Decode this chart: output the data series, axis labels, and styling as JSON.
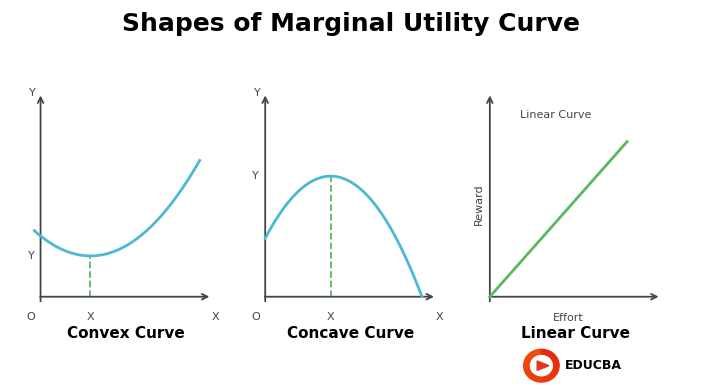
{
  "title": "Shapes of Marginal Utility Curve",
  "title_fontsize": 18,
  "title_fontweight": "bold",
  "bg_color": "#ffffff",
  "curve_color": "#4db8d4",
  "dashed_color": "#5cb85c",
  "linear_color": "#5cb85c",
  "axis_color": "#444444",
  "subtitle_fontsize": 11,
  "panel_labels": [
    "Convex Curve",
    "Concave Curve",
    "Linear Curve"
  ],
  "educba_red": "#e63325",
  "educba_orange": "#f07020",
  "educba_text": "EDUCBA"
}
